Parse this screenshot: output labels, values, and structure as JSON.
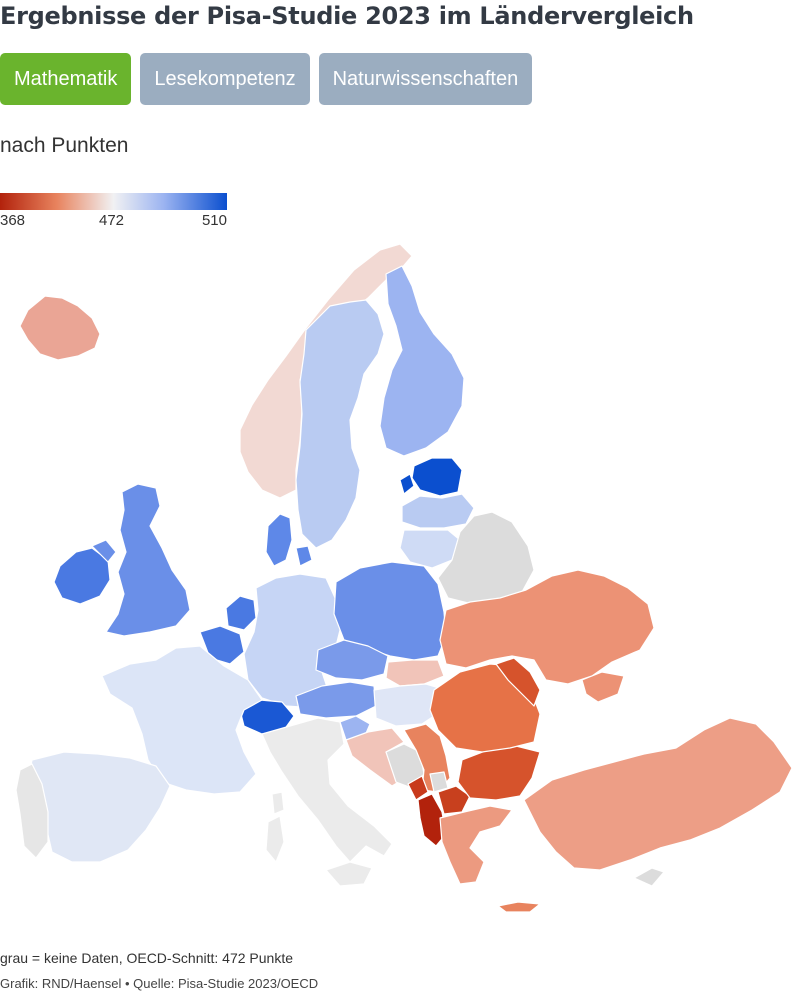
{
  "header": {
    "title": "Ergebnisse der Pisa-Studie 2023 im Ländervergleich"
  },
  "tabs": [
    {
      "label": "Mathematik",
      "active": true
    },
    {
      "label": "Lesekompetenz",
      "active": false
    },
    {
      "label": "Naturwissenschaften",
      "active": false
    }
  ],
  "subtitle": "nach Punkten",
  "legend": {
    "min": "368",
    "mid": "472",
    "max": "510",
    "colors": {
      "min": "#b2220c",
      "low": "#e8835e",
      "mid": "#f1f1f3",
      "high": "#9cb4f1",
      "max": "#0b4fcf"
    }
  },
  "colors": {
    "no_data": "#dcdcdc",
    "active_tab": "#6ab42d",
    "inactive_tab": "#9badc0"
  },
  "footer": {
    "note": "grau = keine Daten, OECD-Schnitt: 472 Punkte",
    "credit": "Grafik: RND/Haensel • Quelle: Pisa-Studie 2023/OECD"
  }
}
